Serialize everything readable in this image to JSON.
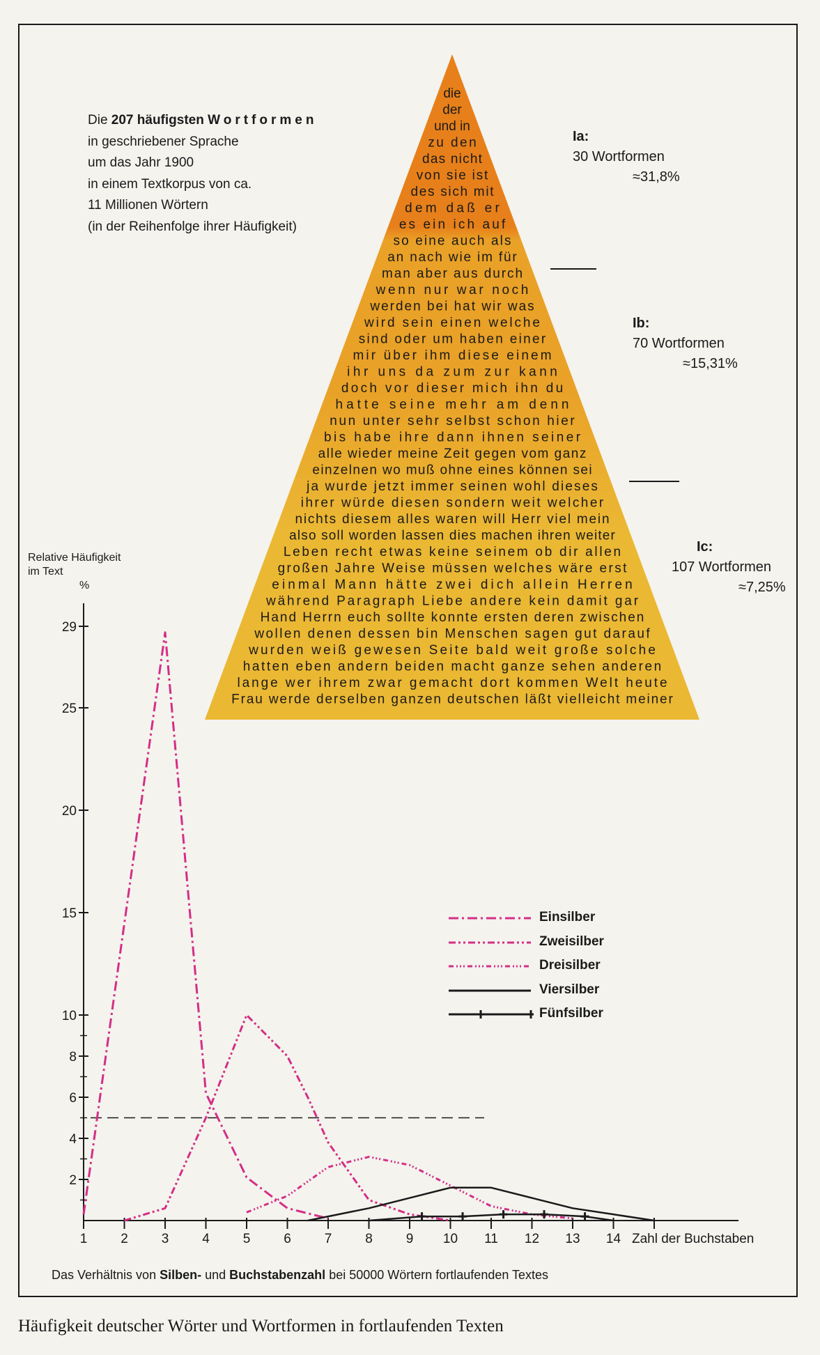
{
  "caption": "Häufigkeit deutscher Wörter und Wortformen in fortlaufenden Texten",
  "intro": {
    "line1_pre": "Die ",
    "line1_bold": "207 häufigsten ",
    "line1_spaced": "Wortformen",
    "line2": "in geschriebener Sprache",
    "line3": "um das Jahr 1900",
    "line4": "in einem Textkorpus von ca.",
    "line5": "11 Millionen Wörtern",
    "line6": "(in der Reihenfolge ihrer Häufigkeit)"
  },
  "pyramid": {
    "colors": [
      "#e7801a",
      "#e9a127",
      "#ebb834"
    ],
    "rows": [
      "die",
      "der",
      "und in",
      "zu den",
      "das nicht",
      "von sie ist",
      "des sich mit",
      "dem daß er",
      "es ein ich auf",
      "so eine auch als",
      "an nach wie im für",
      "man aber aus durch",
      "wenn nur war noch",
      "werden bei hat wir was",
      "wird sein einen welche",
      "sind oder um haben einer",
      "mir über ihm diese einem",
      "ihr uns da zum zur kann",
      "doch vor dieser mich ihn du",
      "hatte seine mehr am denn",
      "nun unter sehr selbst schon hier",
      "bis habe ihre dann ihnen seiner",
      "alle wieder meine Zeit gegen vom ganz",
      "einzelnen wo muß ohne eines können sei",
      "ja wurde jetzt immer seinen wohl dieses",
      "ihrer würde diesen sondern weit welcher",
      "nichts diesem alles waren will Herr viel mein",
      "also soll worden lassen dies machen ihren weiter",
      "Leben recht etwas keine seinem ob dir allen",
      "großen Jahre Weise müssen welches wäre erst",
      "einmal Mann hätte zwei dich allein Herren",
      "während Paragraph Liebe andere kein damit gar",
      "Hand Herrn euch sollte konnte ersten deren zwischen",
      "wollen denen dessen bin Menschen sagen gut darauf",
      "wurden weiß gewesen Seite bald weit große solche",
      "hatten eben andern beiden macht ganze sehen anderen",
      "lange wer ihrem zwar gemacht dort kommen Welt heute",
      "Frau werde derselben ganzen deutschen läßt vielleicht meiner"
    ]
  },
  "groups": [
    {
      "label": "Ia:",
      "count": "30 Wortformen",
      "pct": "≈31,8%"
    },
    {
      "label": "Ib:",
      "count": "70 Wortformen",
      "pct": "≈15,31%"
    },
    {
      "label": "Ic:",
      "count": "107 Wortformen",
      "pct": "≈7,25%"
    }
  ],
  "footnote": {
    "pre": "Das Verhältnis von ",
    "b1": "Silben-",
    "mid": " und ",
    "b2": "Buchstabenzahl",
    "post": " bei 50000 Wörtern fortlaufenden Textes"
  },
  "chart_data": {
    "type": "line",
    "ylabel_line1": "Relative Häufigkeit",
    "ylabel_line2": "im Text",
    "yunit": "%",
    "xlabel": "Zahl der Buchstaben",
    "xlim": [
      1,
      14
    ],
    "ylim": [
      0,
      29
    ],
    "x_ticks": [
      "1",
      "2",
      "3",
      "4",
      "5",
      "6",
      "7",
      "8",
      "9",
      "10",
      "11",
      "12",
      "13",
      "14"
    ],
    "y_ticks": [
      "2",
      "4",
      "6",
      "8",
      "10",
      "15",
      "20",
      "25",
      "29"
    ],
    "reference_line": {
      "y": 5,
      "x": [
        1,
        11
      ]
    },
    "series": [
      {
        "name": "Einsilber",
        "color": "#d42e86",
        "dash": "14,5,3,5",
        "x": [
          1,
          3,
          4,
          5,
          6,
          7
        ],
        "y": [
          0.3,
          28.7,
          6.2,
          2.1,
          0.6,
          0.1
        ]
      },
      {
        "name": "Zweisilber",
        "color": "#d42e86",
        "dash": "10,4,3,4,3,4",
        "x": [
          2,
          3,
          4,
          5,
          6,
          6.5,
          7,
          8,
          9,
          10
        ],
        "y": [
          0,
          0.6,
          5.0,
          10.0,
          8.0,
          6.0,
          3.8,
          1.0,
          0.3,
          0
        ]
      },
      {
        "name": "Dreisilber",
        "color": "#d42e86",
        "dash": "7,4,2,3,2,3,2,4",
        "x": [
          5,
          6,
          7,
          8,
          9,
          10,
          11,
          12,
          13
        ],
        "y": [
          0.4,
          1.2,
          2.6,
          3.1,
          2.7,
          1.7,
          0.7,
          0.3,
          0.1
        ]
      },
      {
        "name": "Viersilber",
        "color": "#1a1a1a",
        "dash": "",
        "x": [
          6.5,
          7,
          8,
          9,
          10,
          11,
          12,
          13,
          14,
          15
        ],
        "y": [
          0,
          0.2,
          0.6,
          1.1,
          1.6,
          1.6,
          1.1,
          0.6,
          0.3,
          0
        ]
      },
      {
        "name": "Fünfsilber",
        "color": "#1a1a1a",
        "dash": "",
        "x": [
          8,
          9.3,
          10.3,
          11.3,
          12.3,
          13.3,
          14
        ],
        "y": [
          0,
          0.2,
          0.2,
          0.3,
          0.3,
          0.2,
          0
        ]
      }
    ]
  }
}
